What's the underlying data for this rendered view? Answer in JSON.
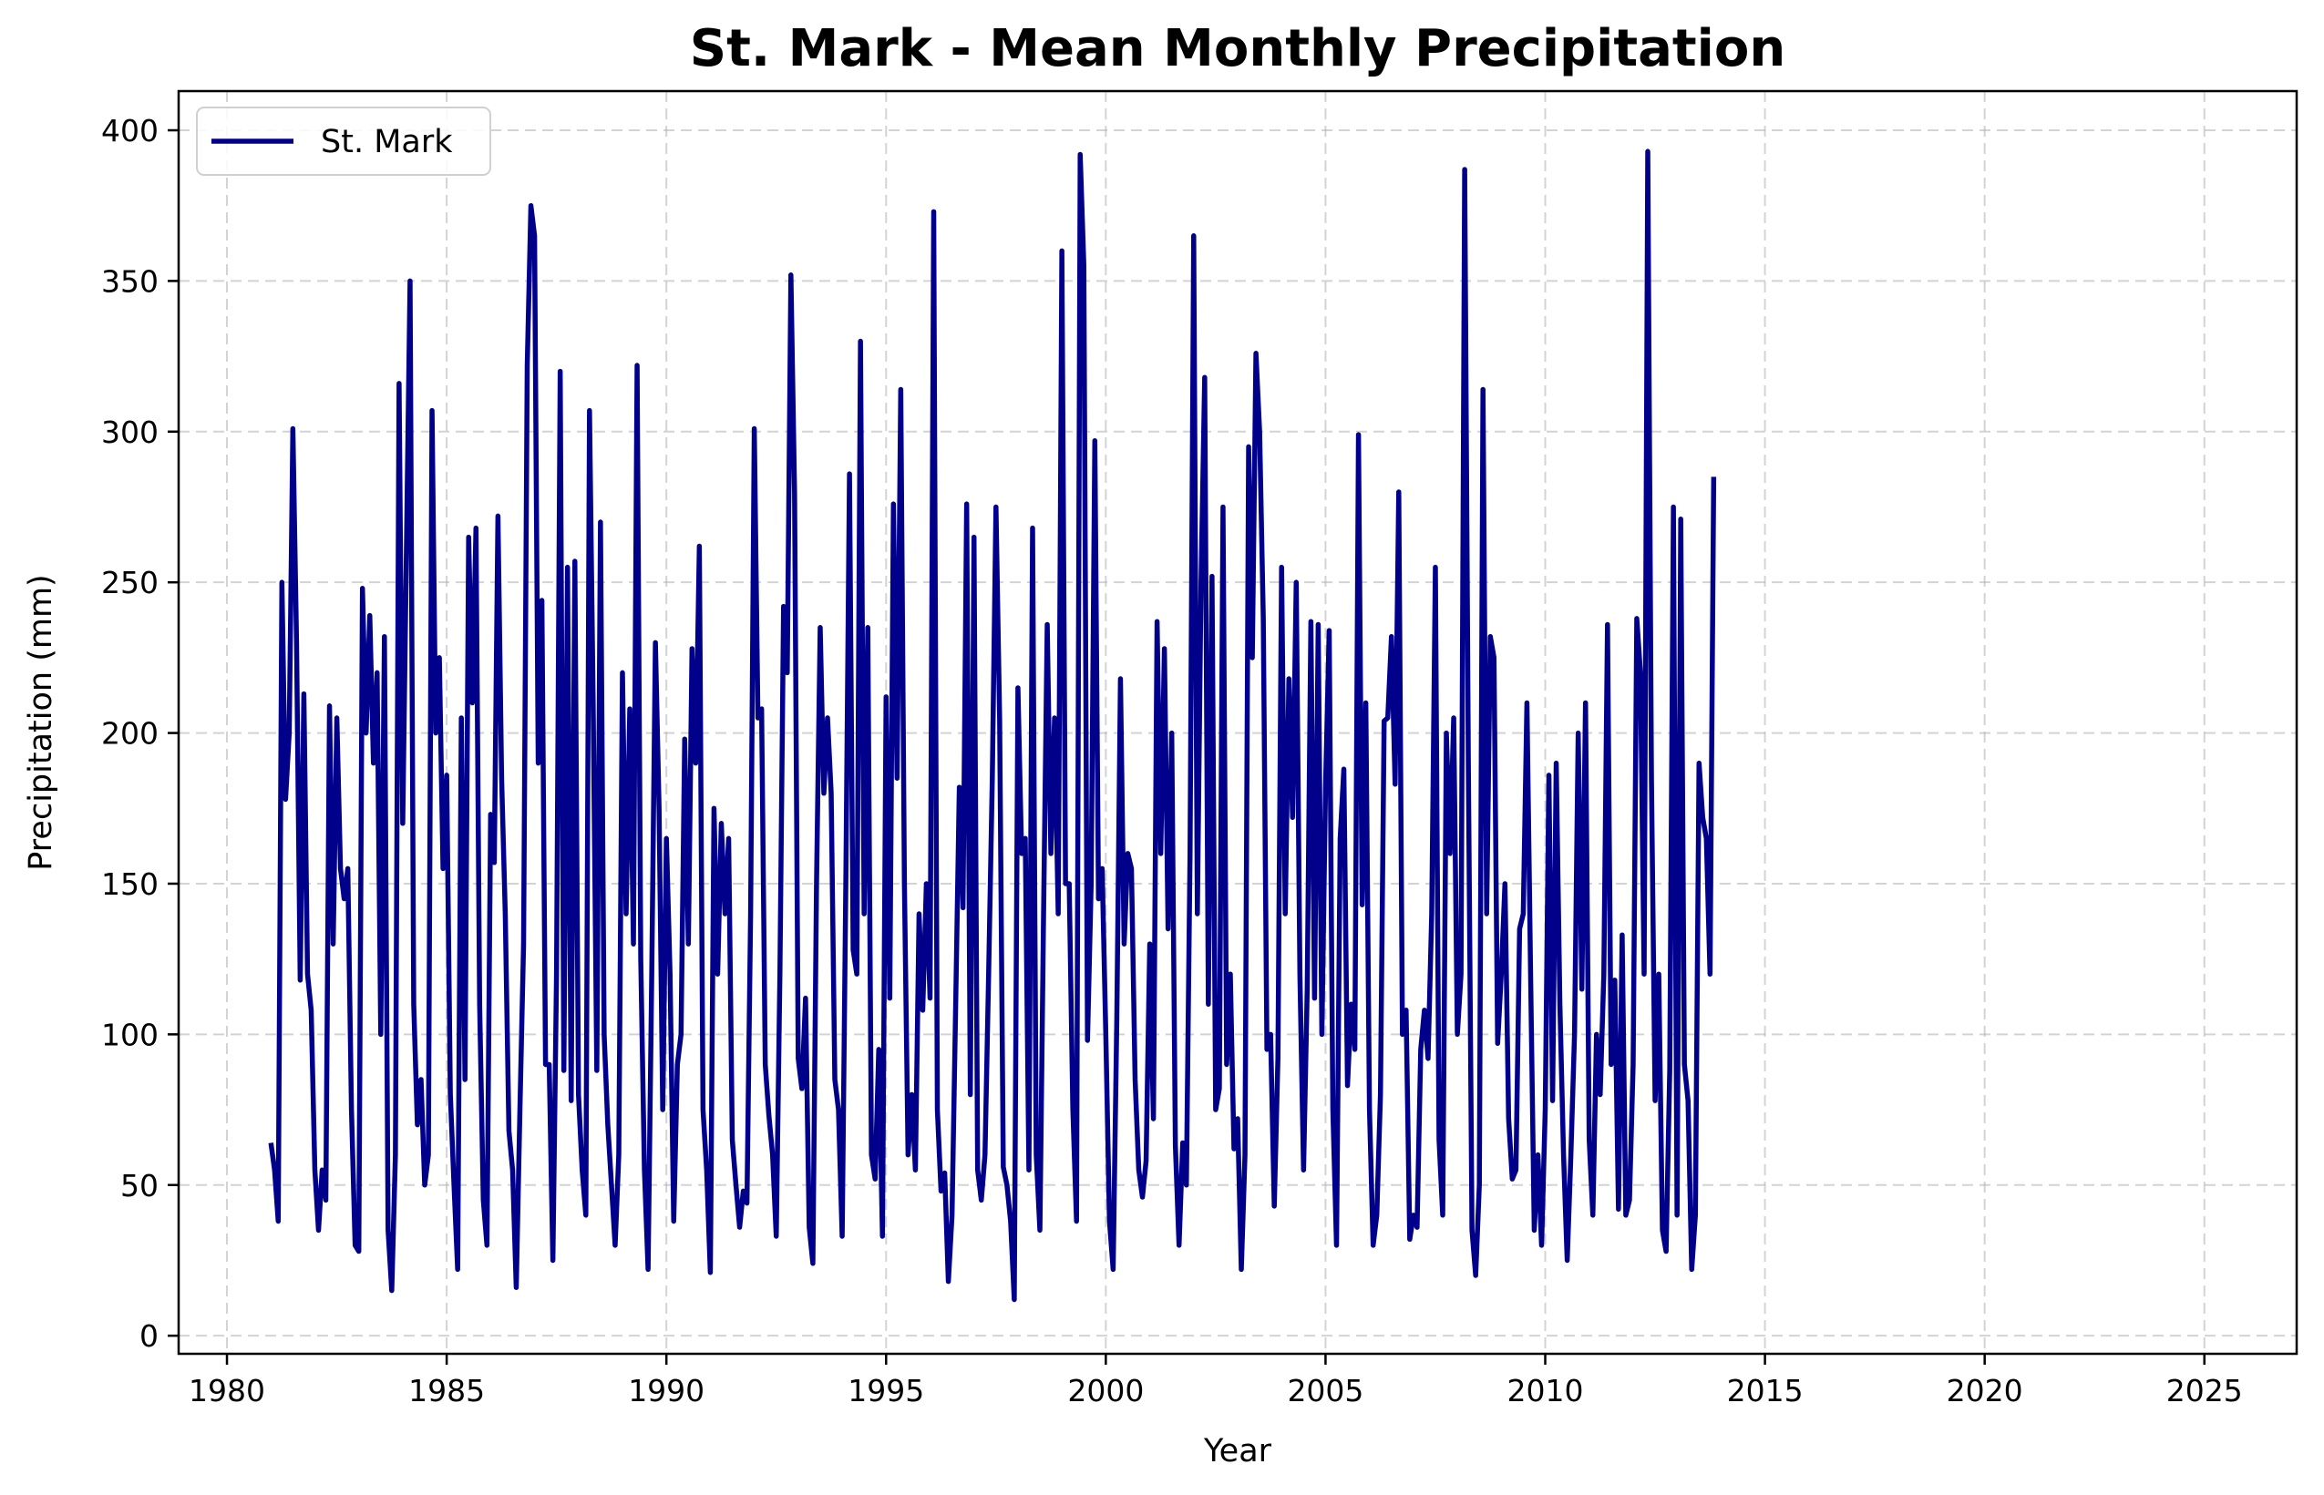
{
  "chart_data": {
    "type": "line",
    "title": "St. Mark - Mean Monthly Precipitation",
    "xlabel": "Year",
    "ylabel": "Precipitation (mm)",
    "xlim": [
      1978.9,
      2027.1
    ],
    "ylim": [
      -6,
      413
    ],
    "x_ticks": [
      1980,
      1985,
      1990,
      1995,
      2000,
      2005,
      2010,
      2015,
      2020,
      2025
    ],
    "y_ticks": [
      0,
      50,
      100,
      150,
      200,
      250,
      300,
      350,
      400
    ],
    "grid": true,
    "legend_position": "top-left",
    "series": [
      {
        "name": "St. Mark",
        "color": "#00008b",
        "start": 1981.0,
        "step_months": 1,
        "values": [
          64,
          55,
          38,
          250,
          178,
          200,
          301,
          230,
          118,
          213,
          120,
          108,
          55,
          35,
          55,
          45,
          209,
          130,
          205,
          155,
          145,
          155,
          75,
          30,
          28,
          248,
          200,
          239,
          190,
          220,
          100,
          232,
          35,
          15,
          60,
          316,
          170,
          260,
          350,
          110,
          70,
          85,
          50,
          60,
          307,
          200,
          225,
          155,
          186,
          80,
          50,
          22,
          205,
          85,
          265,
          210,
          268,
          110,
          45,
          30,
          173,
          157,
          272,
          185,
          140,
          68,
          55,
          16,
          75,
          130,
          322,
          375,
          365,
          190,
          244,
          90,
          90,
          25,
          120,
          320,
          88,
          255,
          78,
          257,
          80,
          55,
          40,
          307,
          210,
          88,
          270,
          100,
          70,
          50,
          30,
          60,
          220,
          140,
          208,
          130,
          322,
          125,
          55,
          22,
          120,
          230,
          175,
          75,
          165,
          120,
          38,
          90,
          100,
          198,
          130,
          228,
          190,
          262,
          75,
          55,
          21,
          175,
          120,
          170,
          140,
          165,
          65,
          50,
          36,
          48,
          44,
          140,
          301,
          205,
          208,
          90,
          73,
          60,
          33,
          120,
          242,
          220,
          352,
          280,
          92,
          82,
          112,
          36,
          24,
          150,
          235,
          180,
          205,
          180,
          85,
          75,
          33,
          150,
          286,
          128,
          120,
          330,
          140,
          235,
          60,
          52,
          95,
          33,
          212,
          112,
          276,
          185,
          314,
          150,
          60,
          80,
          55,
          140,
          108,
          150,
          112,
          373,
          75,
          48,
          54,
          18,
          40,
          110,
          182,
          142,
          276,
          80,
          265,
          55,
          45,
          60,
          120,
          185,
          275,
          205,
          56,
          50,
          38,
          12,
          215,
          160,
          165,
          55,
          268,
          60,
          35,
          140,
          236,
          160,
          205,
          140,
          360,
          150,
          150,
          75,
          38,
          392,
          355,
          98,
          150,
          297,
          145,
          155,
          100,
          38,
          22,
          105,
          218,
          130,
          160,
          155,
          85,
          55,
          46,
          58,
          130,
          72,
          237,
          160,
          228,
          135,
          200,
          63,
          30,
          64,
          50,
          160,
          365,
          140,
          250,
          318,
          110,
          252,
          75,
          82,
          275,
          90,
          120,
          62,
          72,
          22,
          60,
          295,
          225,
          326,
          300,
          238,
          95,
          100,
          43,
          92,
          255,
          140,
          218,
          172,
          250,
          120,
          55,
          115,
          237,
          112,
          236,
          100,
          182,
          234,
          75,
          30,
          165,
          188,
          83,
          110,
          95,
          299,
          143,
          210,
          75,
          30,
          40,
          80,
          204,
          205,
          232,
          183,
          280,
          100,
          108,
          32,
          40,
          36,
          95,
          108,
          92,
          140,
          255,
          65,
          40,
          200,
          160,
          205,
          100,
          120,
          387,
          190,
          35,
          20,
          50,
          314,
          140,
          232,
          225,
          97,
          120,
          150,
          72,
          52,
          55,
          135,
          140,
          210,
          120,
          35,
          60,
          30,
          75,
          186,
          78,
          190,
          110,
          60,
          25,
          60,
          100,
          200,
          115,
          210,
          65,
          40,
          100,
          80,
          120,
          236,
          90,
          118,
          42,
          133,
          40,
          45,
          90,
          238,
          220,
          120,
          393,
          185,
          78,
          120,
          35,
          28,
          88,
          275,
          40,
          271,
          90,
          78,
          22,
          40,
          190,
          172,
          165,
          120,
          285
        ]
      }
    ]
  }
}
